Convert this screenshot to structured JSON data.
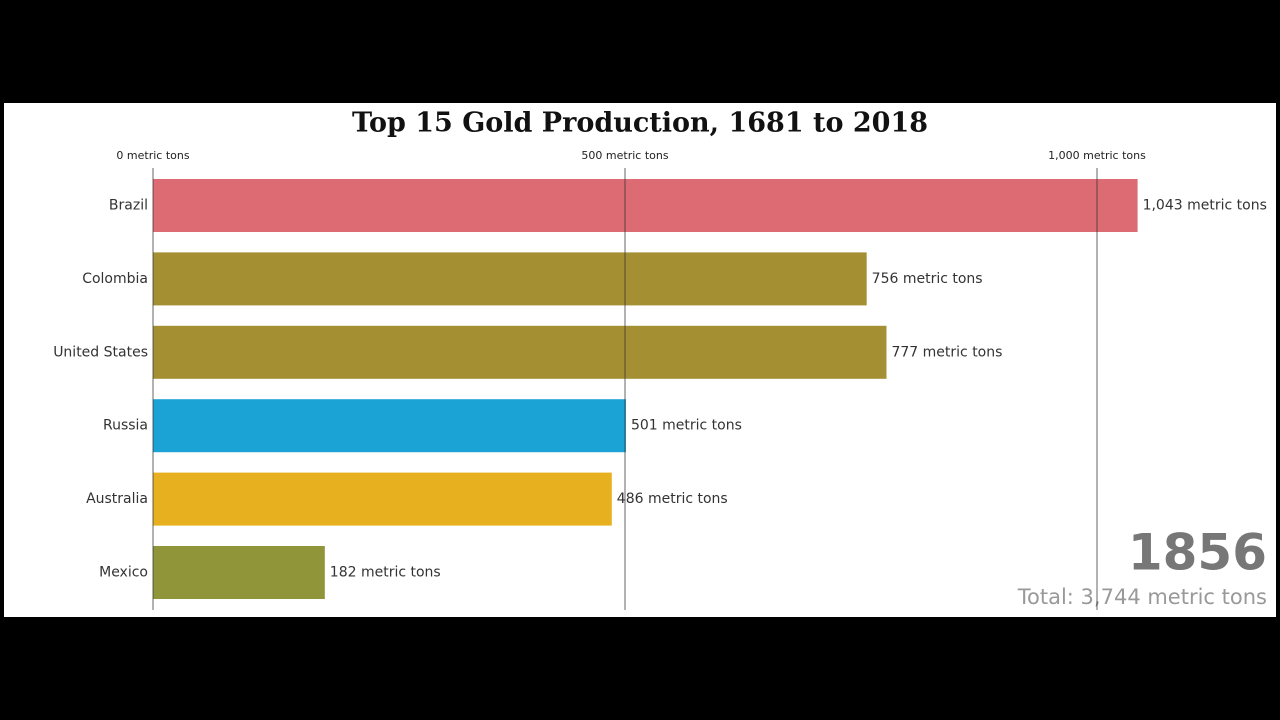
{
  "chart_data": {
    "type": "bar",
    "orientation": "horizontal",
    "title": "Top 15 Gold Production, 1681 to 2018",
    "categories": [
      "Brazil",
      "Colombia",
      "United States",
      "Russia",
      "Australia",
      "Mexico"
    ],
    "values": [
      1043,
      756,
      777,
      501,
      486,
      182
    ],
    "value_labels": [
      "1,043 metric tons",
      "756 metric tons",
      "777 metric tons",
      "501 metric tons",
      "486 metric tons",
      "182 metric tons"
    ],
    "colors": [
      "#dc6b73",
      "#a48f33",
      "#a48f33",
      "#1ba3d6",
      "#e6b01e",
      "#8f9538"
    ],
    "xlim": [
      0,
      1000
    ],
    "xticks": [
      {
        "value": 0,
        "label": "0 metric tons"
      },
      {
        "value": 500,
        "label": "500 metric tons"
      },
      {
        "value": 1000,
        "label": "1,000 metric tons"
      }
    ],
    "grid": true,
    "year": "1856",
    "total": "Total: 3,744 metric tons"
  }
}
